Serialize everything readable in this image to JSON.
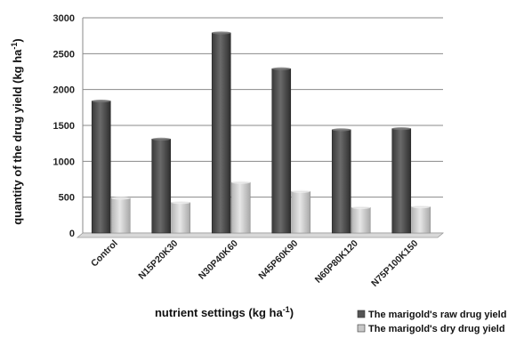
{
  "chart_data": {
    "type": "bar",
    "categories": [
      "Control",
      "N15P20K30",
      "N30P40K60",
      "N45P60K90",
      "N60P80K120",
      "N75P100K150"
    ],
    "series": [
      {
        "name": "The marigold's raw drug yield",
        "values": [
          1840,
          1310,
          2790,
          2290,
          1440,
          1455
        ],
        "color": "#555555"
      },
      {
        "name": "The marigold's dry drug yield",
        "values": [
          485,
          425,
          705,
          580,
          355,
          365
        ],
        "color": "#c8c8c8"
      }
    ],
    "ylim": [
      0,
      3000
    ],
    "yticks": [
      0,
      500,
      1000,
      1500,
      2000,
      2500,
      3000
    ],
    "xlabel": {
      "main": "nutrient settings (kg ha",
      "sup": "-1",
      "end": ")"
    },
    "ylabel": {
      "main": "quantity of the drug  yield (kg ha",
      "sup": "-1",
      "end": ")"
    },
    "grid": true,
    "legend_position": "bottom-right"
  }
}
